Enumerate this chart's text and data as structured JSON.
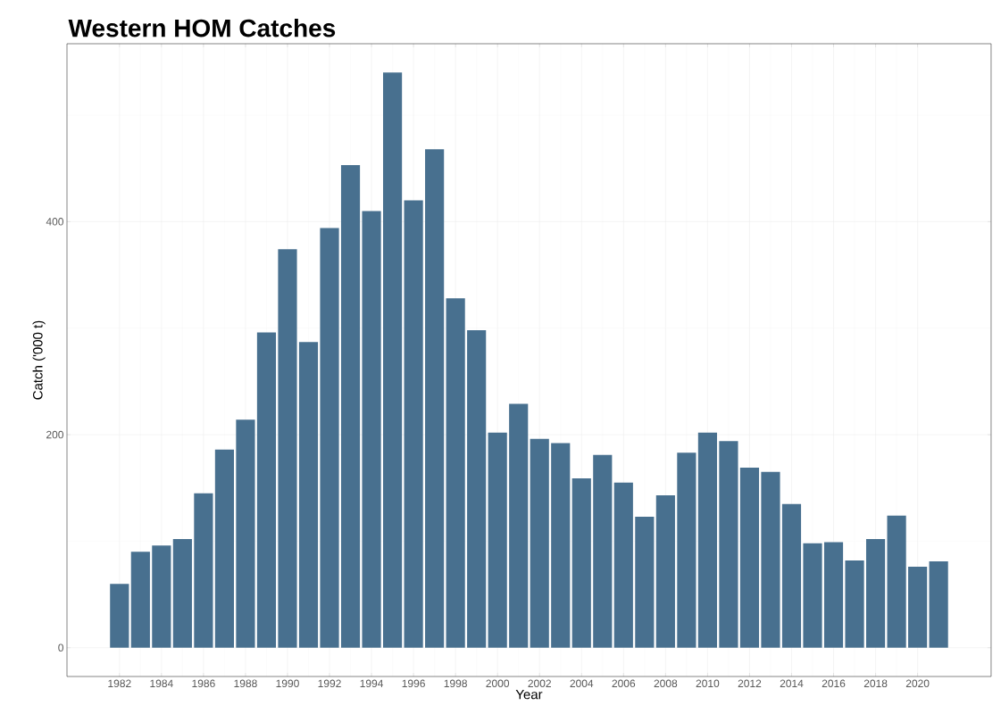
{
  "chart_data": {
    "type": "bar",
    "title": "Western HOM Catches",
    "xlabel": "Year",
    "ylabel": "Catch ('000 t)",
    "x": [
      1982,
      1983,
      1984,
      1985,
      1986,
      1987,
      1988,
      1989,
      1990,
      1991,
      1992,
      1993,
      1994,
      1995,
      1996,
      1997,
      1998,
      1999,
      2000,
      2001,
      2002,
      2003,
      2004,
      2005,
      2006,
      2007,
      2008,
      2009,
      2010,
      2011,
      2012,
      2013,
      2014,
      2015,
      2016,
      2017,
      2018,
      2019,
      2020,
      2021
    ],
    "values": [
      60,
      90,
      96,
      102,
      145,
      186,
      214,
      296,
      374,
      287,
      394,
      453,
      410,
      540,
      420,
      468,
      328,
      298,
      202,
      229,
      196,
      192,
      159,
      181,
      155,
      123,
      143,
      183,
      202,
      194,
      169,
      165,
      135,
      98,
      99,
      82,
      102,
      124,
      76,
      81
    ],
    "color": "#48708f",
    "xlim": [
      1979.5,
      2023.5
    ],
    "xticks": [
      1982,
      1984,
      1986,
      1988,
      1990,
      1992,
      1994,
      1996,
      1998,
      2000,
      2002,
      2004,
      2006,
      2008,
      2010,
      2012,
      2014,
      2016,
      2018,
      2020
    ],
    "ylim": [
      -27,
      567
    ],
    "yticks": [
      0,
      200,
      400
    ],
    "grid": true
  }
}
